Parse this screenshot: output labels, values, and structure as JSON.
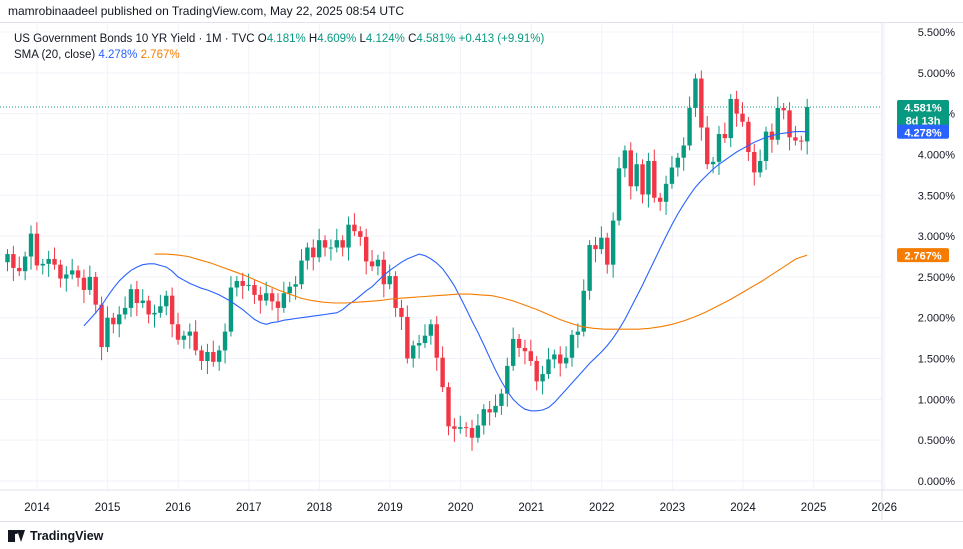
{
  "header": {
    "text": "mamrobinaadeel published on TradingView.com, May 22, 2025 08:54 UTC"
  },
  "legend": {
    "symbol": "US Government Bonds 10 YR Yield · 1M · TVC",
    "o_label": "O",
    "o": "4.181%",
    "h_label": "H",
    "h": "4.609%",
    "l_label": "L",
    "l": "4.124%",
    "c_label": "C",
    "c": "4.581%",
    "change": "+0.413 (+9.91%)",
    "sma_label": "SMA (20, close)",
    "sma20": "4.278%",
    "sma200": "2.767%"
  },
  "badges": {
    "last_price": "4.581%",
    "countdown": "8d 13h",
    "sma20": "4.278%",
    "sma200": "2.767%"
  },
  "footer": {
    "brand": "TradingView"
  },
  "colors": {
    "up": "#089981",
    "down": "#f23645",
    "sma20": "#2962ff",
    "sma200": "#f57c00",
    "grid": "#f0f3fa"
  },
  "chart_data": {
    "type": "candlestick",
    "interval": "1M",
    "x_ticks": [
      "2014",
      "2015",
      "2016",
      "2017",
      "2018",
      "2019",
      "2020",
      "2021",
      "2022",
      "2023",
      "2024",
      "2025",
      "2026"
    ],
    "y_ticks": [
      "0.000%",
      "0.500%",
      "1.000%",
      "1.500%",
      "2.000%",
      "2.500%",
      "3.000%",
      "3.500%",
      "4.000%",
      "4.500%",
      "5.000%",
      "5.500%"
    ],
    "ylim": [
      -0.15,
      5.7
    ],
    "first_bar": "2013-08",
    "last_close_line": 4.581,
    "closes": [
      2.78,
      2.61,
      2.57,
      2.75,
      3.03,
      2.64,
      2.66,
      2.72,
      2.65,
      2.48,
      2.53,
      2.58,
      2.49,
      2.34,
      2.5,
      2.16,
      1.64,
      2.0,
      1.92,
      2.04,
      2.12,
      2.35,
      2.18,
      2.21,
      2.04,
      2.06,
      2.14,
      2.27,
      1.92,
      1.73,
      1.78,
      1.83,
      1.6,
      1.47,
      1.58,
      1.46,
      1.6,
      1.83,
      2.37,
      2.45,
      2.39,
      2.4,
      2.28,
      2.21,
      2.3,
      2.2,
      2.12,
      2.3,
      2.38,
      2.41,
      2.7,
      2.86,
      2.74,
      2.95,
      2.86,
      2.86,
      2.95,
      2.86,
      3.14,
      3.06,
      2.99,
      2.69,
      2.63,
      2.71,
      2.41,
      2.51,
      2.12,
      2.01,
      1.5,
      1.66,
      1.69,
      1.78,
      1.92,
      1.51,
      1.15,
      0.67,
      0.64,
      0.66,
      0.65,
      0.53,
      0.68,
      0.88,
      0.84,
      0.92,
      1.07,
      1.41,
      1.74,
      1.63,
      1.59,
      1.47,
      1.22,
      1.31,
      1.49,
      1.55,
      1.44,
      1.51,
      1.79,
      1.83,
      2.33,
      2.89,
      2.84,
      2.98,
      2.65,
      3.19,
      3.83,
      4.05,
      3.61,
      3.88,
      3.51,
      3.92,
      3.47,
      3.42,
      3.64,
      3.84,
      3.96,
      4.11,
      4.57,
      4.93,
      4.33,
      3.88,
      3.91,
      4.25,
      4.2,
      4.68,
      4.5,
      4.4,
      4.03,
      3.78,
      3.92,
      4.28,
      4.18,
      4.57,
      4.54,
      4.21,
      4.17,
      4.16,
      4.581
    ],
    "sma20": [
      1.9,
      1.98,
      2.06,
      2.15,
      2.26,
      2.36,
      2.45,
      2.52,
      2.58,
      2.62,
      2.65,
      2.66,
      2.66,
      2.64,
      2.62,
      2.57,
      2.5,
      2.46,
      2.42,
      2.39,
      2.36,
      2.34,
      2.31,
      2.28,
      2.24,
      2.2,
      2.15,
      2.1,
      2.04,
      1.98,
      1.94,
      1.92,
      1.94,
      1.95,
      1.97,
      1.98,
      1.99,
      2.0,
      2.01,
      2.02,
      2.03,
      2.04,
      2.05,
      2.06,
      2.1,
      2.16,
      2.21,
      2.27,
      2.33,
      2.38,
      2.45,
      2.52,
      2.58,
      2.63,
      2.68,
      2.72,
      2.75,
      2.78,
      2.76,
      2.72,
      2.67,
      2.6,
      2.5,
      2.39,
      2.25,
      2.11,
      1.96,
      1.82,
      1.67,
      1.51,
      1.36,
      1.22,
      1.1,
      1.0,
      0.93,
      0.88,
      0.86,
      0.86,
      0.87,
      0.9,
      0.96,
      1.04,
      1.12,
      1.2,
      1.28,
      1.36,
      1.44,
      1.51,
      1.58,
      1.66,
      1.75,
      1.86,
      1.98,
      2.12,
      2.26,
      2.4,
      2.55,
      2.7,
      2.85,
      3.0,
      3.14,
      3.27,
      3.39,
      3.5,
      3.6,
      3.68,
      3.75,
      3.82,
      3.88,
      3.93,
      3.98,
      4.03,
      4.07,
      4.11,
      4.15,
      4.18,
      4.21,
      4.23,
      4.25,
      4.26,
      4.27,
      4.28,
      4.28,
      4.278
    ],
    "sma200": [
      2.78,
      2.78,
      2.77,
      2.75,
      2.71,
      2.67,
      2.62,
      2.57,
      2.52,
      2.46,
      2.4,
      2.34,
      2.29,
      2.24,
      2.21,
      2.19,
      2.18,
      2.18,
      2.19,
      2.2,
      2.21,
      2.23,
      2.24,
      2.25,
      2.26,
      2.27,
      2.28,
      2.29,
      2.29,
      2.28,
      2.27,
      2.24,
      2.2,
      2.15,
      2.1,
      2.04,
      1.98,
      1.93,
      1.89,
      1.87,
      1.86,
      1.86,
      1.86,
      1.86,
      1.87,
      1.89,
      1.92,
      1.96,
      2.01,
      2.07,
      2.14,
      2.21,
      2.29,
      2.37,
      2.45,
      2.54,
      2.63,
      2.72,
      2.767
    ]
  }
}
